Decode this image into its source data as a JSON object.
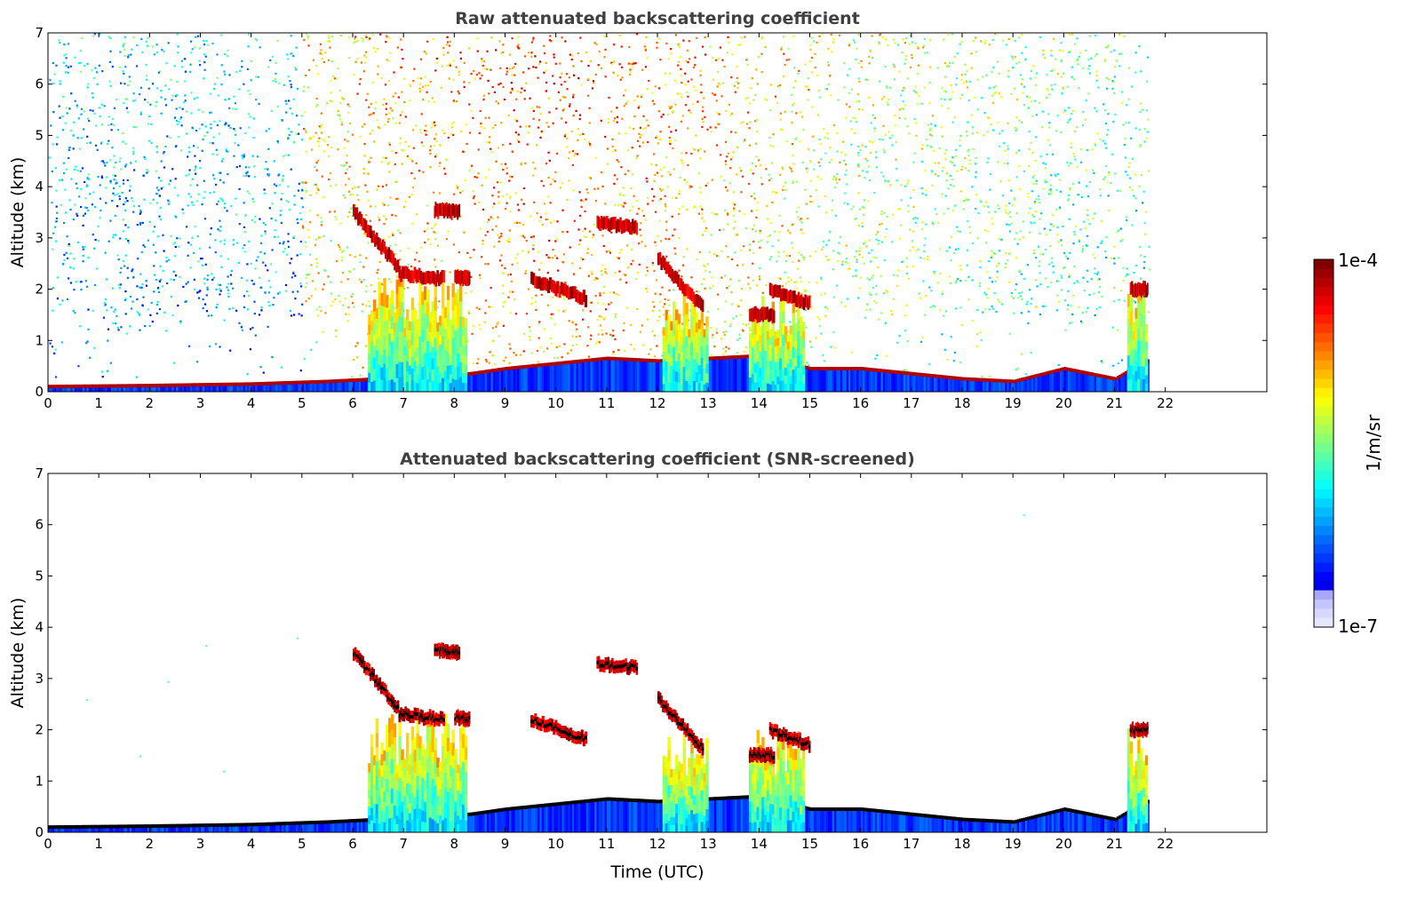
{
  "colors": {
    "jet": [
      "#00008f",
      "#0000ff",
      "#0080ff",
      "#00ffff",
      "#80ff80",
      "#ffff00",
      "#ff8000",
      "#ff0000",
      "#800000"
    ],
    "low_end": "#e6e6ff",
    "cloud_top_mark": "#000000"
  },
  "chart_data": [
    {
      "type": "heatmap",
      "title": "Raw attenuated backscattering coefficient",
      "xlabel": "",
      "ylabel": "Altitude (km)",
      "xlim": [
        0,
        24
      ],
      "ylim": [
        0,
        7
      ],
      "x_ticks": [
        0,
        1,
        2,
        3,
        4,
        5,
        6,
        7,
        8,
        9,
        10,
        11,
        12,
        13,
        14,
        15,
        16,
        17,
        18,
        19,
        20,
        21,
        22
      ],
      "y_ticks": [
        0,
        1,
        2,
        3,
        4,
        5,
        6,
        7
      ],
      "data_end_time": 21.67,
      "screened": false,
      "features": {
        "boundary_layer_top_km": [
          [
            0,
            0.1
          ],
          [
            2,
            0.12
          ],
          [
            4,
            0.15
          ],
          [
            5.5,
            0.2
          ],
          [
            6.5,
            0.25
          ],
          [
            7,
            0.3
          ],
          [
            8.3,
            0.35
          ],
          [
            9,
            0.45
          ],
          [
            10,
            0.55
          ],
          [
            11,
            0.65
          ],
          [
            12,
            0.6
          ],
          [
            13,
            0.65
          ],
          [
            14,
            0.7
          ],
          [
            15,
            0.45
          ],
          [
            16,
            0.45
          ],
          [
            17,
            0.35
          ],
          [
            18,
            0.25
          ],
          [
            19,
            0.2
          ],
          [
            20,
            0.45
          ],
          [
            21,
            0.25
          ],
          [
            21.6,
            0.6
          ]
        ],
        "cloud_segments": [
          {
            "t": [
              6.0,
              6.9
            ],
            "alt": [
              3.5,
              2.4
            ]
          },
          {
            "t": [
              6.9,
              7.8
            ],
            "alt": [
              2.3,
              2.2
            ]
          },
          {
            "t": [
              7.6,
              8.1
            ],
            "alt": [
              3.55,
              3.5
            ]
          },
          {
            "t": [
              8.0,
              8.3
            ],
            "alt": [
              2.25,
              2.2
            ]
          },
          {
            "t": [
              9.5,
              10.6
            ],
            "alt": [
              2.2,
              1.8
            ]
          },
          {
            "t": [
              10.8,
              11.6
            ],
            "alt": [
              3.3,
              3.2
            ]
          },
          {
            "t": [
              12.0,
              12.9
            ],
            "alt": [
              2.6,
              1.6
            ]
          },
          {
            "t": [
              13.8,
              14.3
            ],
            "alt": [
              1.5,
              1.5
            ]
          },
          {
            "t": [
              14.2,
              15.0
            ],
            "alt": [
              2.0,
              1.7
            ]
          },
          {
            "t": [
              21.3,
              21.65
            ],
            "alt": [
              2.0,
              2.0
            ]
          }
        ],
        "precip_columns": [
          {
            "t": [
              6.3,
              8.2
            ],
            "top_km": 2.4
          },
          {
            "t": [
              12.1,
              13.0
            ],
            "top_km": 2.0
          },
          {
            "t": [
              13.8,
              14.9
            ],
            "top_km": 2.0
          },
          {
            "t": [
              21.25,
              21.65
            ],
            "top_km": 2.2
          }
        ]
      }
    },
    {
      "type": "heatmap",
      "title": "Attenuated backscattering coefficient (SNR-screened)",
      "xlabel": "Time (UTC)",
      "ylabel": "Altitude (km)",
      "xlim": [
        0,
        24
      ],
      "ylim": [
        0,
        7
      ],
      "x_ticks": [
        0,
        1,
        2,
        3,
        4,
        5,
        6,
        7,
        8,
        9,
        10,
        11,
        12,
        13,
        14,
        15,
        16,
        17,
        18,
        19,
        20,
        21,
        22
      ],
      "y_ticks": [
        0,
        1,
        2,
        3,
        4,
        5,
        6,
        7
      ],
      "data_end_time": 21.67,
      "screened": true
    }
  ],
  "colorbar": {
    "label": "1/m/sr",
    "max_label": "1e-4",
    "min_label": "1e-7",
    "scale": "log",
    "range": [
      1e-07,
      0.0001
    ]
  }
}
